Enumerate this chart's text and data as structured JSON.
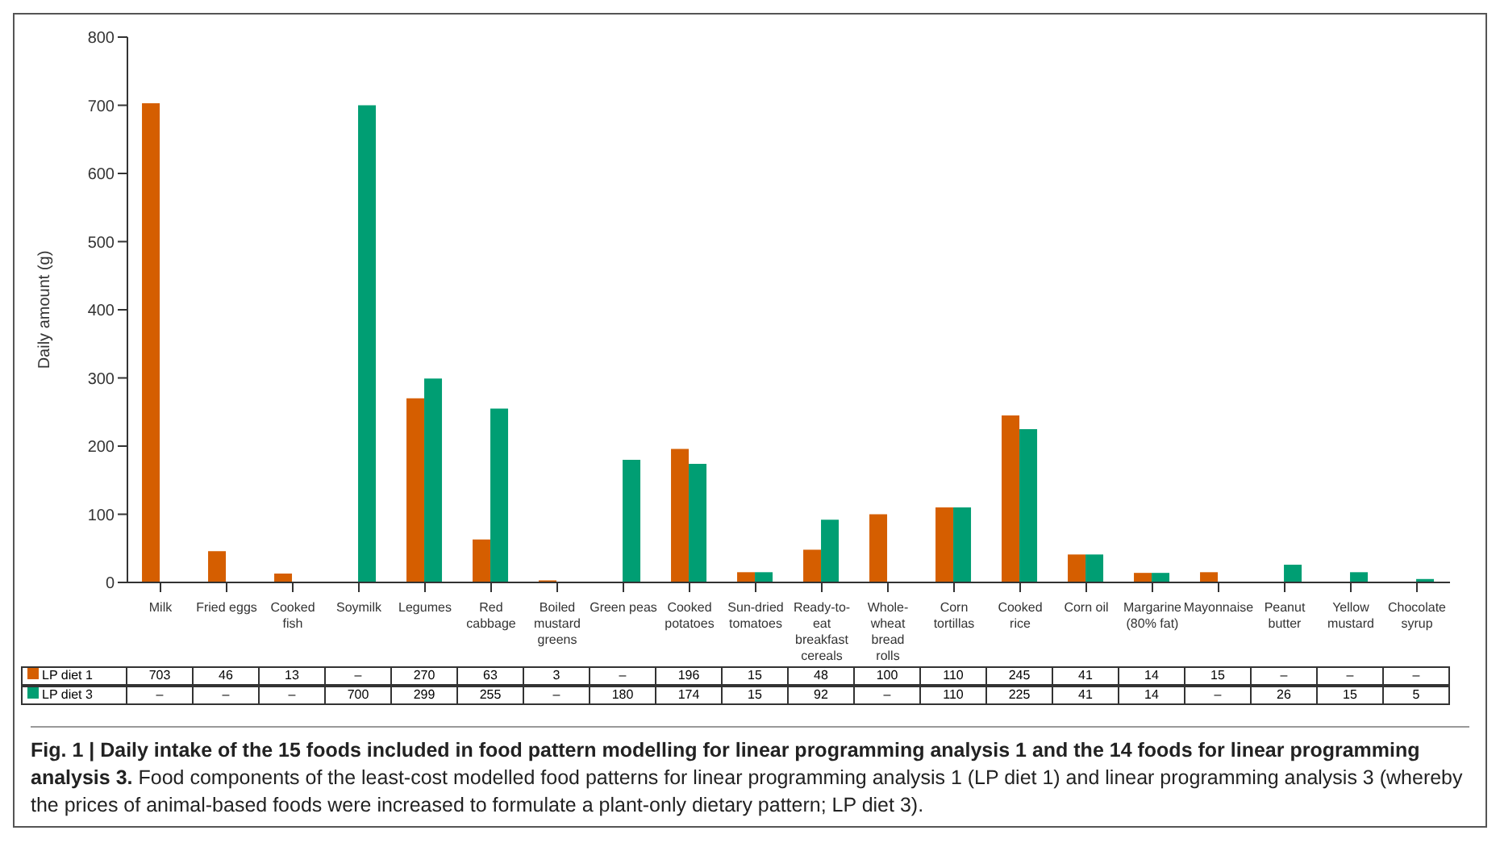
{
  "chart_data": {
    "type": "bar",
    "title": "Fig. 1 | Daily intake of the 15 foods included in food pattern modelling for linear programming analysis 1 and the 14 foods for linear programming analysis 3.",
    "subtitle": "Food components of the least-cost modelled food patterns for linear programming analysis 1 (LP diet 1) and linear programming analysis 3 (whereby the prices of animal-based foods were increased to formulate a plant-only dietary pattern; LP diet 3).",
    "ylabel": "Daily amount (g)",
    "categories": [
      "Milk",
      "Fried eggs",
      "Cooked fish",
      "Soymilk",
      "Legumes",
      "Red cabbage",
      "Boiled mustard greens",
      "Green peas",
      "Cooked potatoes",
      "Sun-dried tomatoes",
      "Ready-to-eat breakfast cereals",
      "Whole-wheat bread rolls",
      "Corn tortillas",
      "Cooked rice",
      "Corn oil",
      "Margarine (80% fat)",
      "Mayonnaise",
      "Peanut butter",
      "Yellow mustard",
      "Chocolate syrup"
    ],
    "series": [
      {
        "name": "LP diet 1",
        "color": "#d55e00",
        "values": [
          703,
          46,
          13,
          null,
          270,
          63,
          3,
          null,
          196,
          15,
          48,
          100,
          110,
          245,
          41,
          14,
          15,
          null,
          null,
          null
        ],
        "value_labels": [
          "703",
          "46",
          "13",
          "–",
          "270",
          "63",
          "3",
          "–",
          "196",
          "15",
          "48",
          "100",
          "110",
          "245",
          "41",
          "14",
          "15",
          "–",
          "–",
          "–"
        ]
      },
      {
        "name": "LP diet 3",
        "color": "#009e73",
        "values": [
          null,
          null,
          null,
          700,
          299,
          255,
          null,
          180,
          174,
          15,
          92,
          null,
          110,
          225,
          41,
          14,
          null,
          26,
          15,
          5
        ],
        "value_labels": [
          "–",
          "–",
          "–",
          "700",
          "299",
          "255",
          "–",
          "180",
          "174",
          "15",
          "92",
          "–",
          "110",
          "225",
          "41",
          "14",
          "–",
          "26",
          "15",
          "5"
        ]
      }
    ],
    "ylim": [
      0,
      800
    ],
    "yticks": [
      0,
      100,
      200,
      300,
      400,
      500,
      600,
      700,
      800
    ],
    "legend": "bottom"
  }
}
